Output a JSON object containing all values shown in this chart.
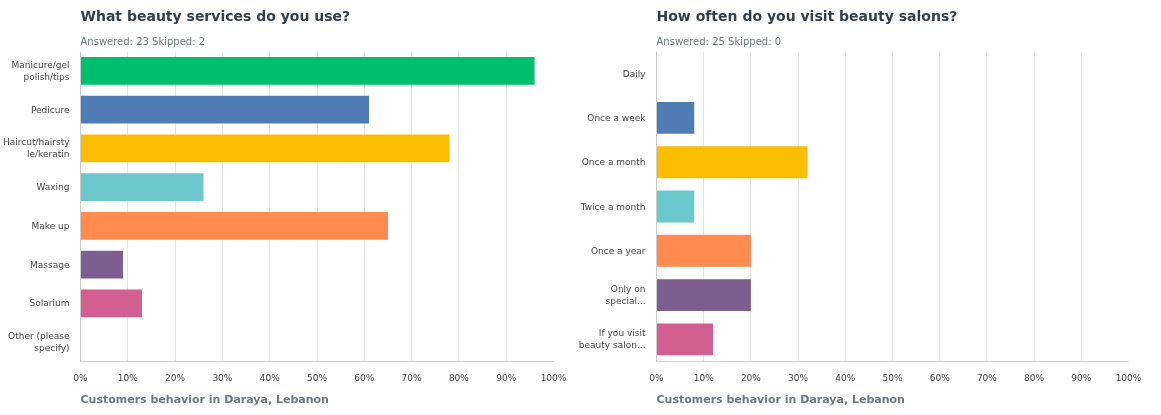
{
  "chart_data": [
    {
      "type": "bar",
      "orientation": "horizontal",
      "title": "What beauty services do you use?",
      "subtitle": "Answered: 23     Skipped: 2",
      "categories": [
        "Manicure/gel polish/tips",
        "Pedicure",
        "Haircut/hairstyle/keratin",
        "Waxing",
        "Make up",
        "Massage",
        "Solarium",
        "Other (please specify)"
      ],
      "values": [
        96,
        61,
        78,
        26,
        65,
        9,
        13,
        0
      ],
      "colors": [
        "#00bf6f",
        "#507cb6",
        "#f9be00",
        "#6bc8cd",
        "#ff8b4f",
        "#7d5e90",
        "#d25f90",
        "#d2d2d2"
      ],
      "xlim": [
        0,
        100
      ],
      "xticks": [
        {
          "value": 0,
          "label": "0%"
        },
        {
          "value": 10,
          "label": "10%"
        },
        {
          "value": 20,
          "label": "20%"
        },
        {
          "value": 30,
          "label": "30%"
        },
        {
          "value": 40,
          "label": "40%"
        },
        {
          "value": 50,
          "label": "50%"
        },
        {
          "value": 60,
          "label": "60%"
        },
        {
          "value": 70,
          "label": "70%"
        },
        {
          "value": 80,
          "label": "80%"
        },
        {
          "value": 90,
          "label": "90%"
        },
        {
          "value": 100,
          "label": "100%"
        }
      ],
      "grid": "x",
      "annotations": [
        "Customers behavior in Daraya, Lebanon"
      ]
    },
    {
      "type": "bar",
      "orientation": "horizontal",
      "title": "How often do you visit beauty salons?",
      "subtitle": "Answered: 25     Skipped: 0",
      "categories": [
        "Daily",
        "Once a week",
        "Once a month",
        "Twice a month",
        "Once a year",
        "Only on special...",
        "If you visit beauty salon..."
      ],
      "values": [
        0,
        8,
        32,
        8,
        20,
        20,
        12
      ],
      "colors": [
        "#00bf6f",
        "#507cb6",
        "#f9be00",
        "#6bc8cd",
        "#ff8b4f",
        "#7d5e90",
        "#d25f90"
      ],
      "xlim": [
        0,
        100
      ],
      "xticks": [
        {
          "value": 0,
          "label": "0%"
        },
        {
          "value": 10,
          "label": "10%"
        },
        {
          "value": 20,
          "label": "20%"
        },
        {
          "value": 30,
          "label": "30%"
        },
        {
          "value": 40,
          "label": "40%"
        },
        {
          "value": 50,
          "label": "50%"
        },
        {
          "value": 60,
          "label": "60%"
        },
        {
          "value": 70,
          "label": "70%"
        },
        {
          "value": 80,
          "label": "80%"
        },
        {
          "value": 90,
          "label": "90%"
        },
        {
          "value": 100,
          "label": "100%"
        }
      ],
      "grid": "x",
      "annotations": [
        "Customers behavior in Daraya, Lebanon"
      ]
    }
  ]
}
